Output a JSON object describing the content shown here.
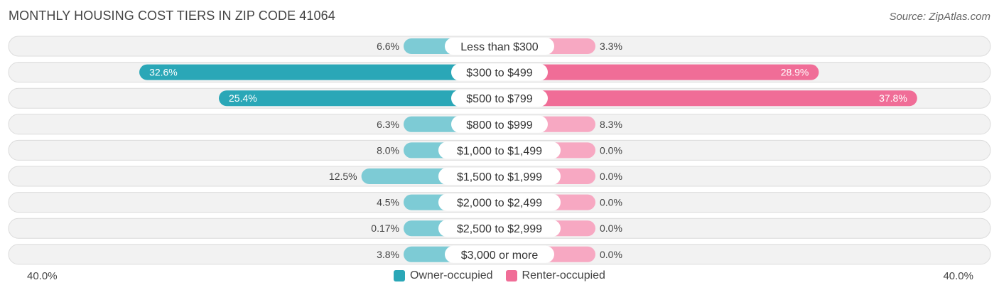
{
  "chart_data": {
    "type": "bar",
    "orientation": "horizontal-diverging",
    "title": "MONTHLY HOUSING COST TIERS IN ZIP CODE 41064",
    "source": "Source: ZipAtlas.com",
    "categories": [
      "Less than $300",
      "$300 to $499",
      "$500 to $799",
      "$800 to $999",
      "$1,000 to $1,499",
      "$1,500 to $1,999",
      "$2,000 to $2,499",
      "$2,500 to $2,999",
      "$3,000 or more"
    ],
    "series": [
      {
        "name": "Owner-occupied",
        "values": [
          6.6,
          32.6,
          25.4,
          6.3,
          8.0,
          12.5,
          4.5,
          0.17,
          3.8
        ],
        "labels": [
          "6.6%",
          "32.6%",
          "25.4%",
          "6.3%",
          "8.0%",
          "12.5%",
          "4.5%",
          "0.17%",
          "3.8%"
        ],
        "color": "#2aa7b7",
        "light_color": "#7dcbd5"
      },
      {
        "name": "Renter-occupied",
        "values": [
          3.3,
          28.9,
          37.8,
          8.3,
          0.0,
          0.0,
          0.0,
          0.0,
          0.0
        ],
        "labels": [
          "3.3%",
          "28.9%",
          "37.8%",
          "8.3%",
          "0.0%",
          "0.0%",
          "0.0%",
          "0.0%",
          "0.0%"
        ],
        "color": "#f06d97",
        "light_color": "#f7a8c2"
      }
    ],
    "axis_max": 40.0,
    "axis_left_label": "40.0%",
    "axis_right_label": "40.0%",
    "legend_position": "bottom-center"
  }
}
